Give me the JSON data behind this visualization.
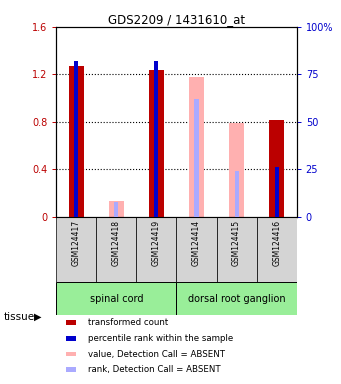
{
  "title": "GDS2209 / 1431610_at",
  "samples": [
    "GSM124417",
    "GSM124418",
    "GSM124419",
    "GSM124414",
    "GSM124415",
    "GSM124416"
  ],
  "red_values": [
    1.27,
    null,
    1.24,
    null,
    null,
    0.82
  ],
  "blue_values": [
    82.0,
    null,
    82.0,
    null,
    null,
    26.0
  ],
  "pink_values": [
    null,
    0.13,
    null,
    1.18,
    0.79,
    null
  ],
  "lightblue_values": [
    null,
    8.0,
    null,
    62.0,
    24.0,
    null
  ],
  "ylim_left": [
    0,
    1.6
  ],
  "ylim_right": [
    0,
    100
  ],
  "yticks_left": [
    0,
    0.4,
    0.8,
    1.2,
    1.6
  ],
  "yticks_right": [
    0,
    25,
    50,
    75,
    100
  ],
  "ytick_labels_right": [
    "0",
    "25",
    "50",
    "75",
    "100%"
  ],
  "red_color": "#bb0000",
  "blue_color": "#0000cc",
  "pink_color": "#ffb0b0",
  "lightblue_color": "#aaaaff",
  "bg_color": "#ffffff",
  "tissue_green": "#99ee99",
  "sample_gray": "#d4d4d4",
  "legend_items": [
    {
      "color": "#bb0000",
      "label": "transformed count"
    },
    {
      "color": "#0000cc",
      "label": "percentile rank within the sample"
    },
    {
      "color": "#ffb0b0",
      "label": "value, Detection Call = ABSENT"
    },
    {
      "color": "#aaaaff",
      "label": "rank, Detection Call = ABSENT"
    }
  ]
}
